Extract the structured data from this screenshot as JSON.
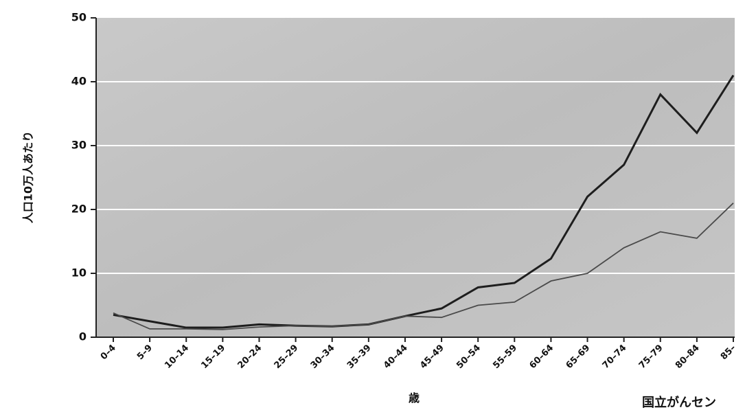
{
  "chart_data": {
    "type": "line",
    "y_label": "人口10万人あたり",
    "x_label": "歳",
    "source": "国立がんセン",
    "categories": [
      "0–4",
      "5–9",
      "10–14",
      "15–19",
      "20–24",
      "25–29",
      "30–34",
      "35–39",
      "40–44",
      "45–49",
      "50–54",
      "55–59",
      "60–64",
      "65–69",
      "70–74",
      "75–79",
      "80–84",
      "85–"
    ],
    "series": [
      {
        "color": "#1e1e1e",
        "values": [
          3.5,
          2.5,
          1.5,
          1.5,
          2,
          1.8,
          1.7,
          2,
          3.3,
          4.5,
          7.8,
          8.5,
          12.3,
          22,
          27,
          38,
          32,
          41
        ]
      },
      {
        "color": "#4a4a4a",
        "values": [
          3.8,
          1.3,
          1.3,
          1.2,
          1.6,
          1.8,
          1.7,
          2,
          3.3,
          3.1,
          5,
          5.5,
          8.8,
          10,
          14,
          16.5,
          15.5,
          21
        ]
      }
    ],
    "ylim": [
      0,
      50
    ],
    "yticks": [
      0,
      10,
      20,
      30,
      40,
      50
    ],
    "grid": true
  }
}
